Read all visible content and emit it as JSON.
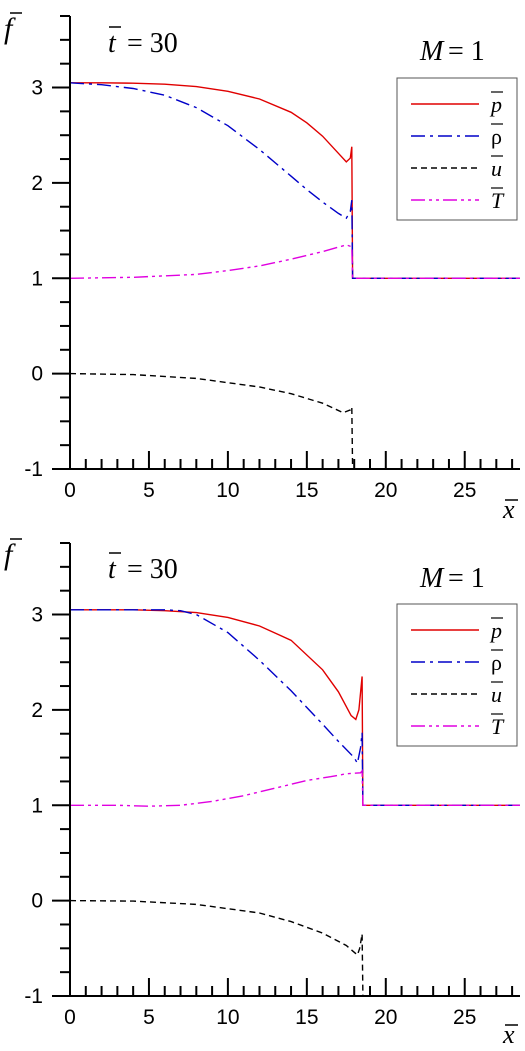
{
  "chart_data": [
    {
      "type": "line",
      "title": "",
      "xlabel": "x",
      "ylabel": "f",
      "time_label": "t",
      "time_value": "= 30",
      "param_label": "M",
      "param_value": "= 1",
      "xlim": [
        0,
        28.5
      ],
      "ylim": [
        -1,
        3.75
      ],
      "xticks": [
        0,
        5,
        10,
        15,
        20,
        25
      ],
      "yticks": [
        -1,
        0,
        1,
        2,
        3
      ],
      "legend_position": "top-right",
      "series": [
        {
          "name": "p",
          "color": "#e00000",
          "style": "solid",
          "points": [
            [
              0,
              3.05
            ],
            [
              2,
              3.05
            ],
            [
              4,
              3.045
            ],
            [
              6,
              3.035
            ],
            [
              8,
              3.01
            ],
            [
              10,
              2.96
            ],
            [
              12,
              2.88
            ],
            [
              14,
              2.74
            ],
            [
              15,
              2.63
            ],
            [
              16,
              2.49
            ],
            [
              17,
              2.31
            ],
            [
              17.5,
              2.22
            ],
            [
              17.75,
              2.26
            ],
            [
              17.85,
              2.38
            ],
            [
              17.9,
              1.0
            ],
            [
              28.5,
              1.0
            ]
          ]
        },
        {
          "name": "ρ",
          "color": "#0000c8",
          "style": "dashdot",
          "points": [
            [
              0,
              3.05
            ],
            [
              2,
              3.03
            ],
            [
              4,
              2.99
            ],
            [
              6,
              2.92
            ],
            [
              8,
              2.79
            ],
            [
              10,
              2.6
            ],
            [
              12,
              2.35
            ],
            [
              14,
              2.07
            ],
            [
              15,
              1.93
            ],
            [
              16,
              1.8
            ],
            [
              17,
              1.68
            ],
            [
              17.5,
              1.63
            ],
            [
              17.75,
              1.7
            ],
            [
              17.85,
              1.82
            ],
            [
              17.9,
              1.0
            ],
            [
              28.5,
              1.0
            ]
          ]
        },
        {
          "name": "u",
          "color": "#000000",
          "style": "dashed",
          "points": [
            [
              0,
              0.0
            ],
            [
              4,
              -0.01
            ],
            [
              8,
              -0.05
            ],
            [
              12,
              -0.14
            ],
            [
              14,
              -0.21
            ],
            [
              16,
              -0.31
            ],
            [
              17.3,
              -0.41
            ],
            [
              17.75,
              -0.38
            ],
            [
              17.85,
              -0.35
            ],
            [
              17.9,
              -1.0
            ]
          ]
        },
        {
          "name": "T",
          "color": "#e000e0",
          "style": "dashdotdot",
          "points": [
            [
              0,
              1.0
            ],
            [
              4,
              1.01
            ],
            [
              8,
              1.04
            ],
            [
              10,
              1.08
            ],
            [
              12,
              1.13
            ],
            [
              14,
              1.2
            ],
            [
              16,
              1.28
            ],
            [
              17.5,
              1.35
            ],
            [
              17.85,
              1.33
            ],
            [
              17.9,
              1.0
            ],
            [
              28.5,
              1.0
            ]
          ]
        }
      ]
    },
    {
      "type": "line",
      "title": "",
      "xlabel": "x",
      "ylabel": "f",
      "time_label": "t",
      "time_value": "= 30",
      "param_label": "M",
      "param_value": "= 1",
      "xlim": [
        0,
        28.5
      ],
      "ylim": [
        -1,
        3.75
      ],
      "xticks": [
        0,
        5,
        10,
        15,
        20,
        25
      ],
      "yticks": [
        -1,
        0,
        1,
        2,
        3
      ],
      "legend_position": "top-right",
      "series": [
        {
          "name": "p",
          "color": "#e00000",
          "style": "solid",
          "points": [
            [
              0,
              3.05
            ],
            [
              2,
              3.05
            ],
            [
              4,
              3.05
            ],
            [
              6,
              3.04
            ],
            [
              8,
              3.02
            ],
            [
              10,
              2.97
            ],
            [
              12,
              2.88
            ],
            [
              14,
              2.73
            ],
            [
              16,
              2.42
            ],
            [
              17,
              2.19
            ],
            [
              17.8,
              1.94
            ],
            [
              18.1,
              1.9
            ],
            [
              18.3,
              2.0
            ],
            [
              18.5,
              2.35
            ],
            [
              18.55,
              1.0
            ],
            [
              28.5,
              1.0
            ]
          ]
        },
        {
          "name": "ρ",
          "color": "#0000c8",
          "style": "dashdot",
          "points": [
            [
              0,
              3.05
            ],
            [
              2,
              3.05
            ],
            [
              4,
              3.05
            ],
            [
              6,
              3.05
            ],
            [
              7,
              3.04
            ],
            [
              8,
              3.0
            ],
            [
              10,
              2.81
            ],
            [
              12,
              2.52
            ],
            [
              14,
              2.2
            ],
            [
              16,
              1.85
            ],
            [
              17,
              1.67
            ],
            [
              18,
              1.5
            ],
            [
              18.2,
              1.44
            ],
            [
              18.4,
              1.6
            ],
            [
              18.5,
              1.76
            ],
            [
              18.55,
              1.0
            ],
            [
              28.5,
              1.0
            ]
          ]
        },
        {
          "name": "u",
          "color": "#000000",
          "style": "dashed",
          "points": [
            [
              0,
              0.0
            ],
            [
              4,
              -0.005
            ],
            [
              8,
              -0.04
            ],
            [
              12,
              -0.13
            ],
            [
              14,
              -0.22
            ],
            [
              16,
              -0.34
            ],
            [
              17.5,
              -0.47
            ],
            [
              18.2,
              -0.57
            ],
            [
              18.35,
              -0.5
            ],
            [
              18.5,
              -0.35
            ],
            [
              18.55,
              -1.0
            ]
          ]
        },
        {
          "name": "T",
          "color": "#e000e0",
          "style": "dashdotdot",
          "points": [
            [
              0,
              1.0
            ],
            [
              3,
              1.0
            ],
            [
              5,
              0.99
            ],
            [
              7,
              1.0
            ],
            [
              9,
              1.04
            ],
            [
              11,
              1.1
            ],
            [
              13,
              1.18
            ],
            [
              15,
              1.26
            ],
            [
              16.5,
              1.3
            ],
            [
              17.5,
              1.33
            ],
            [
              18.4,
              1.34
            ],
            [
              18.5,
              1.36
            ],
            [
              18.55,
              1.0
            ],
            [
              28.5,
              1.0
            ]
          ]
        }
      ]
    }
  ]
}
